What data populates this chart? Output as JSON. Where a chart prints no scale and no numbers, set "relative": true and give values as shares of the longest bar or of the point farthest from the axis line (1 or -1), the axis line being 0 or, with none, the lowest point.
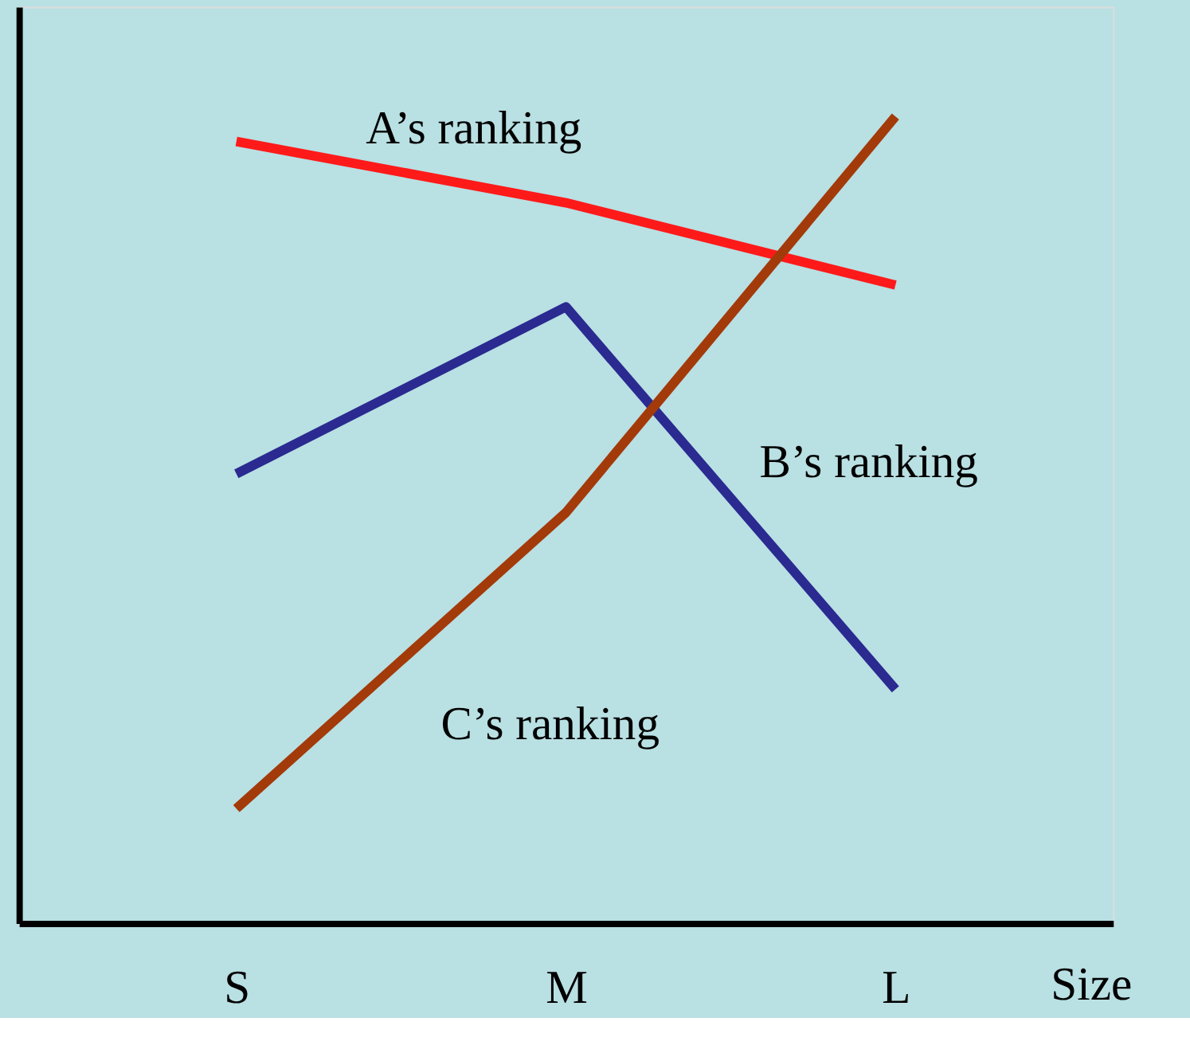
{
  "chart_data": {
    "type": "line",
    "relative": true,
    "xlabel": "Size",
    "categories": [
      "S",
      "M",
      "L"
    ],
    "series": [
      {
        "name": "A’s ranking",
        "color": "#ff1a1a",
        "values": [
          0.969,
          0.893,
          0.791
        ]
      },
      {
        "name": "B’s ranking",
        "color": "#2a2a90",
        "values": [
          0.557,
          0.764,
          0.29
        ]
      },
      {
        "name": "C’s ranking",
        "color": "#a33a0a",
        "values": [
          0.142,
          0.509,
          1.0
        ]
      }
    ],
    "grid": false,
    "marker": "none",
    "line_style": "solid",
    "tick_labels": "x"
  }
}
